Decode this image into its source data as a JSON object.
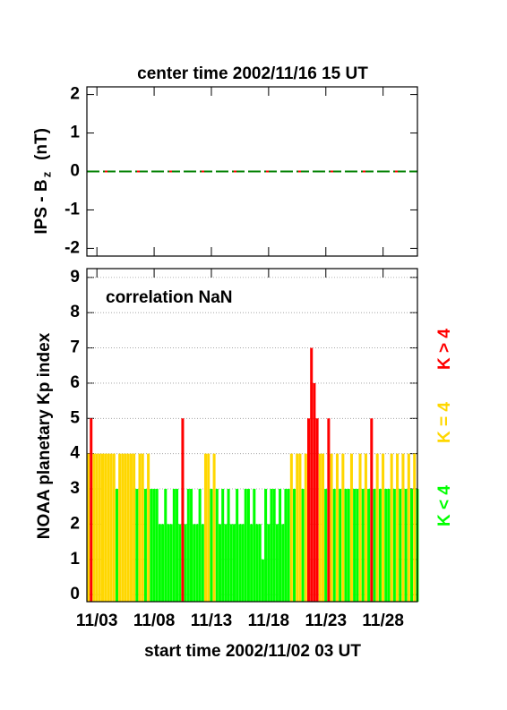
{
  "chart_data": [
    {
      "type": "line",
      "title": "center time 2002/11/16 15 UT",
      "y_label": [
        "IPS - B",
        "z",
        "(nT)"
      ],
      "xlim": [
        0,
        28.875
      ],
      "ylim": [
        -2.2,
        2.2
      ],
      "yticks": [
        -2,
        -1,
        0,
        1,
        2
      ],
      "series": [
        {
          "color": "#008000",
          "x": [
            0,
            28.875
          ],
          "values": [
            0,
            0
          ]
        },
        {
          "color": "#ff0000",
          "x": [
            0,
            28.875
          ],
          "values": [
            0,
            0
          ]
        }
      ]
    },
    {
      "type": "bar",
      "annotation": "correlation NaN",
      "y_label": "NOAA planetary Kp index",
      "x_label": "start time 2002/11/02 03 UT",
      "xlim": [
        0,
        28.875
      ],
      "ylim": [
        -0.2,
        9.25
      ],
      "yticks": [
        0,
        1,
        2,
        3,
        4,
        5,
        6,
        7,
        8,
        9
      ],
      "grid": true,
      "xticks": [
        {
          "value": 0.875,
          "label": "11/03"
        },
        {
          "value": 5.875,
          "label": "11/08"
        },
        {
          "value": 10.875,
          "label": "11/13"
        },
        {
          "value": 15.875,
          "label": "11/18"
        },
        {
          "value": 20.875,
          "label": "11/23"
        },
        {
          "value": 25.875,
          "label": "11/28"
        }
      ],
      "threshold": 4,
      "legend": [
        {
          "label": "K > 4",
          "color": "#ff0000"
        },
        {
          "label": "K = 4",
          "color": "#ffd700"
        },
        {
          "label": "K < 4",
          "color": "#00ff00"
        }
      ],
      "x": [
        0,
        0.25,
        0.5,
        0.75,
        1,
        1.25,
        1.5,
        1.75,
        2,
        2.25,
        2.5,
        2.75,
        3,
        3.25,
        3.5,
        3.75,
        4,
        4.25,
        4.5,
        4.75,
        5,
        5.25,
        5.5,
        5.75,
        6,
        6.25,
        6.5,
        6.75,
        7,
        7.25,
        7.5,
        7.75,
        8,
        8.25,
        8.5,
        8.75,
        9,
        9.25,
        9.5,
        9.75,
        10,
        10.25,
        10.5,
        10.75,
        11,
        11.25,
        11.5,
        11.75,
        12,
        12.25,
        12.5,
        12.75,
        13,
        13.25,
        13.5,
        13.75,
        14,
        14.25,
        14.5,
        14.75,
        15,
        15.25,
        15.5,
        15.75,
        16,
        16.25,
        16.5,
        16.75,
        17,
        17.25,
        17.5,
        17.75,
        18,
        18.25,
        18.5,
        18.75,
        19,
        19.25,
        19.5,
        19.75,
        20,
        20.25,
        20.5,
        20.75,
        21,
        21.25,
        21.5,
        21.75,
        22,
        22.25,
        22.5,
        22.75,
        23,
        23.25,
        23.5,
        23.75,
        24,
        24.25,
        24.5,
        24.75,
        25,
        25.25,
        25.5,
        25.75,
        26,
        26.25,
        26.5,
        26.75,
        27,
        27.25,
        27.5,
        27.75,
        28,
        28.25,
        28.5,
        28.75
      ],
      "values": [
        4,
        5,
        4,
        4,
        4,
        4,
        4,
        4,
        4,
        4,
        3,
        4,
        4,
        4,
        4,
        4,
        4,
        3,
        4,
        4,
        3,
        4,
        3,
        3,
        3,
        2,
        2,
        3,
        2,
        2,
        3,
        3,
        2,
        5,
        2,
        3,
        3,
        2,
        2,
        3,
        2,
        4,
        4,
        3,
        4,
        3,
        2,
        3,
        2,
        3,
        2,
        2,
        3,
        2,
        2,
        3,
        3,
        2,
        3,
        2,
        2,
        1,
        3,
        2,
        3,
        3,
        2,
        3,
        2,
        3,
        3,
        4,
        3,
        4,
        4,
        3,
        4,
        5,
        7,
        6,
        5,
        4,
        4,
        3,
        5,
        4,
        3,
        4,
        3,
        4,
        3,
        3,
        4,
        3,
        3,
        4,
        3,
        4,
        3,
        5,
        3,
        4,
        3,
        4,
        3,
        3,
        4,
        3,
        4,
        3,
        4,
        3,
        4,
        3,
        4,
        3
      ]
    }
  ]
}
